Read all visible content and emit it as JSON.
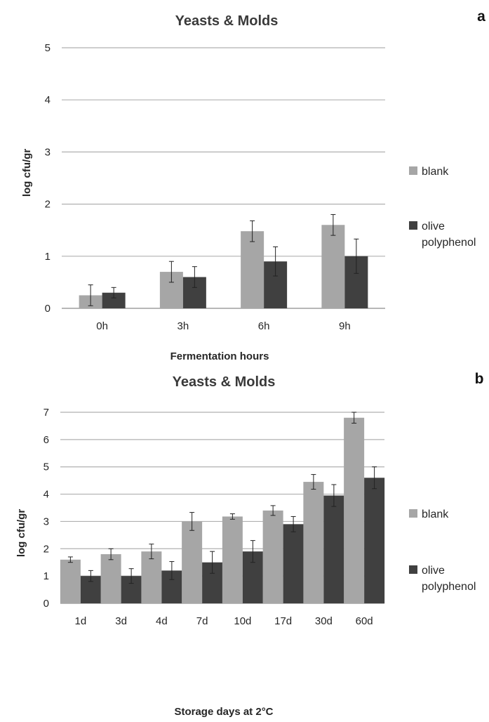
{
  "chart_data": [
    {
      "type": "bar",
      "panel_label": "a",
      "title": "Yeasts & Molds",
      "xlabel": "Fermentation hours",
      "ylabel": "log cfu/gr",
      "ylim": [
        0,
        5
      ],
      "yticks": [
        0,
        1,
        2,
        3,
        4,
        5
      ],
      "grid": true,
      "legend_position": "right",
      "categories": [
        "0h",
        "3h",
        "6h",
        "9h"
      ],
      "series": [
        {
          "name": "blank",
          "legend_lines": [
            "blank"
          ],
          "color": "#a6a6a6",
          "values": [
            0.25,
            0.7,
            1.48,
            1.6
          ],
          "errors": [
            0.2,
            0.2,
            0.2,
            0.2
          ]
        },
        {
          "name": "olive polyphenol",
          "legend_lines": [
            "olive",
            "polyphenol"
          ],
          "color": "#404040",
          "values": [
            0.3,
            0.6,
            0.9,
            1.0
          ],
          "errors": [
            0.1,
            0.2,
            0.28,
            0.33
          ]
        }
      ]
    },
    {
      "type": "bar",
      "panel_label": "b",
      "title": "Yeasts & Molds",
      "xlabel": "Storage days at 2°C",
      "ylabel": "log cfu/gr",
      "ylim": [
        0,
        7
      ],
      "yticks": [
        0,
        1,
        2,
        3,
        4,
        5,
        6,
        7
      ],
      "grid": true,
      "legend_position": "right",
      "categories": [
        "1d",
        "3d",
        "4d",
        "7d",
        "10d",
        "17d",
        "30d",
        "60d"
      ],
      "series": [
        {
          "name": "blank",
          "legend_lines": [
            "blank"
          ],
          "color": "#a6a6a6",
          "values": [
            1.6,
            1.8,
            1.9,
            3.0,
            3.18,
            3.4,
            4.45,
            6.8
          ],
          "errors": [
            0.1,
            0.2,
            0.27,
            0.33,
            0.1,
            0.18,
            0.27,
            0.2
          ]
        },
        {
          "name": "olive polyphenol",
          "legend_lines": [
            "olive",
            "polyphenol"
          ],
          "color": "#404040",
          "values": [
            1.0,
            1.0,
            1.2,
            1.5,
            1.9,
            2.9,
            3.95,
            4.6
          ],
          "errors": [
            0.2,
            0.27,
            0.33,
            0.4,
            0.4,
            0.28,
            0.4,
            0.4
          ]
        }
      ]
    }
  ]
}
